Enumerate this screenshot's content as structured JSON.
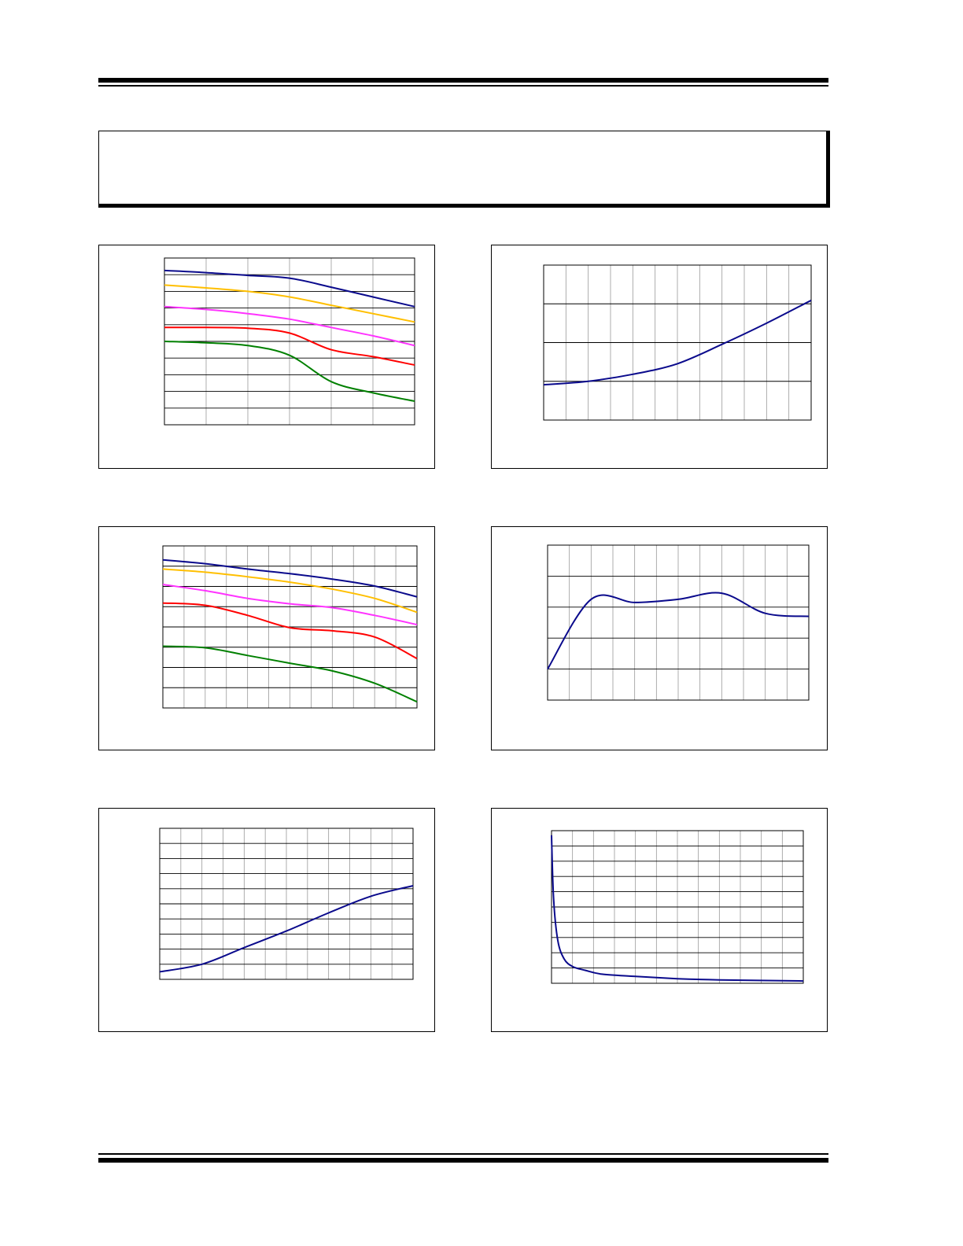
{
  "page": {
    "note_box_text": ""
  },
  "chart_data": [
    {
      "type": "line",
      "panel": "top-left",
      "x": [
        0,
        1,
        2,
        3,
        4,
        5,
        6
      ],
      "series": [
        {
          "color": "#0a0a8c",
          "values": [
            10.1,
            9.95,
            9.75,
            9.55,
            8.9,
            8.2,
            7.5
          ]
        },
        {
          "color": "#ffbf00",
          "values": [
            9.05,
            8.85,
            8.6,
            8.2,
            7.6,
            7.0,
            6.4
          ]
        },
        {
          "color": "#ff33ff",
          "values": [
            7.5,
            7.3,
            7.0,
            6.6,
            6.0,
            5.4,
            4.7
          ]
        },
        {
          "color": "#ff0000",
          "values": [
            6.0,
            6.0,
            5.95,
            5.6,
            4.4,
            3.9,
            3.3
          ]
        },
        {
          "color": "#008000",
          "values": [
            5.0,
            4.9,
            4.7,
            4.0,
            2.1,
            1.3,
            0.7
          ]
        }
      ],
      "ylim": [
        -1,
        11
      ],
      "xlim": [
        0,
        6
      ],
      "grid": true
    },
    {
      "type": "line",
      "panel": "top-right",
      "x": [
        0,
        1,
        2,
        3,
        4,
        5,
        6
      ],
      "series": [
        {
          "color": "#0a0a8c",
          "values": [
            2.0,
            2.2,
            2.6,
            3.2,
            4.3,
            5.5,
            6.8
          ]
        }
      ],
      "ylim": [
        0,
        8.8
      ],
      "xlim": [
        0,
        6
      ],
      "grid": true
    },
    {
      "type": "line",
      "panel": "middle-left",
      "x": [
        0,
        1,
        2,
        3,
        4,
        5,
        6
      ],
      "series": [
        {
          "color": "#0a0a8c",
          "values": [
            9.6,
            9.35,
            9.0,
            8.7,
            8.35,
            7.9,
            7.2
          ]
        },
        {
          "color": "#ffbf00",
          "values": [
            9.0,
            8.8,
            8.5,
            8.15,
            7.7,
            7.1,
            6.2
          ]
        },
        {
          "color": "#ff33ff",
          "values": [
            8.0,
            7.6,
            7.1,
            6.75,
            6.5,
            6.0,
            5.4
          ]
        },
        {
          "color": "#ff0000",
          "values": [
            6.8,
            6.65,
            6.0,
            5.2,
            5.0,
            4.6,
            3.2
          ]
        },
        {
          "color": "#008000",
          "values": [
            4.0,
            3.9,
            3.4,
            2.9,
            2.4,
            1.6,
            0.4
          ]
        }
      ],
      "ylim": [
        0,
        10.5
      ],
      "xlim": [
        0,
        6
      ],
      "grid": true
    },
    {
      "type": "line",
      "panel": "middle-right",
      "x": [
        0,
        1,
        2,
        3,
        4,
        5,
        6
      ],
      "series": [
        {
          "color": "#0a0a8c",
          "values": [
            2.0,
            6.5,
            6.3,
            6.5,
            6.9,
            5.6,
            5.4
          ]
        }
      ],
      "ylim": [
        0,
        10
      ],
      "xlim": [
        0,
        6
      ],
      "grid": true
    },
    {
      "type": "line",
      "panel": "bottom-left",
      "x": [
        0,
        1,
        2,
        3,
        4,
        5,
        6
      ],
      "series": [
        {
          "color": "#0a0a8c",
          "values": [
            0.5,
            1.0,
            2.1,
            3.2,
            4.4,
            5.5,
            6.2
          ]
        }
      ],
      "ylim": [
        0,
        10
      ],
      "xlim": [
        0,
        6
      ],
      "grid": true
    },
    {
      "type": "line",
      "panel": "bottom-right",
      "x": [
        0,
        0.05,
        0.15,
        0.3,
        0.5,
        0.8,
        1.2,
        2,
        3,
        4,
        6
      ],
      "series": [
        {
          "color": "#0a0a8c",
          "values": [
            9.7,
            5.5,
            2.8,
            1.6,
            1.1,
            0.85,
            0.6,
            0.45,
            0.3,
            0.22,
            0.15
          ]
        }
      ],
      "ylim": [
        0,
        10
      ],
      "xlim": [
        0,
        6
      ],
      "grid": true
    }
  ]
}
